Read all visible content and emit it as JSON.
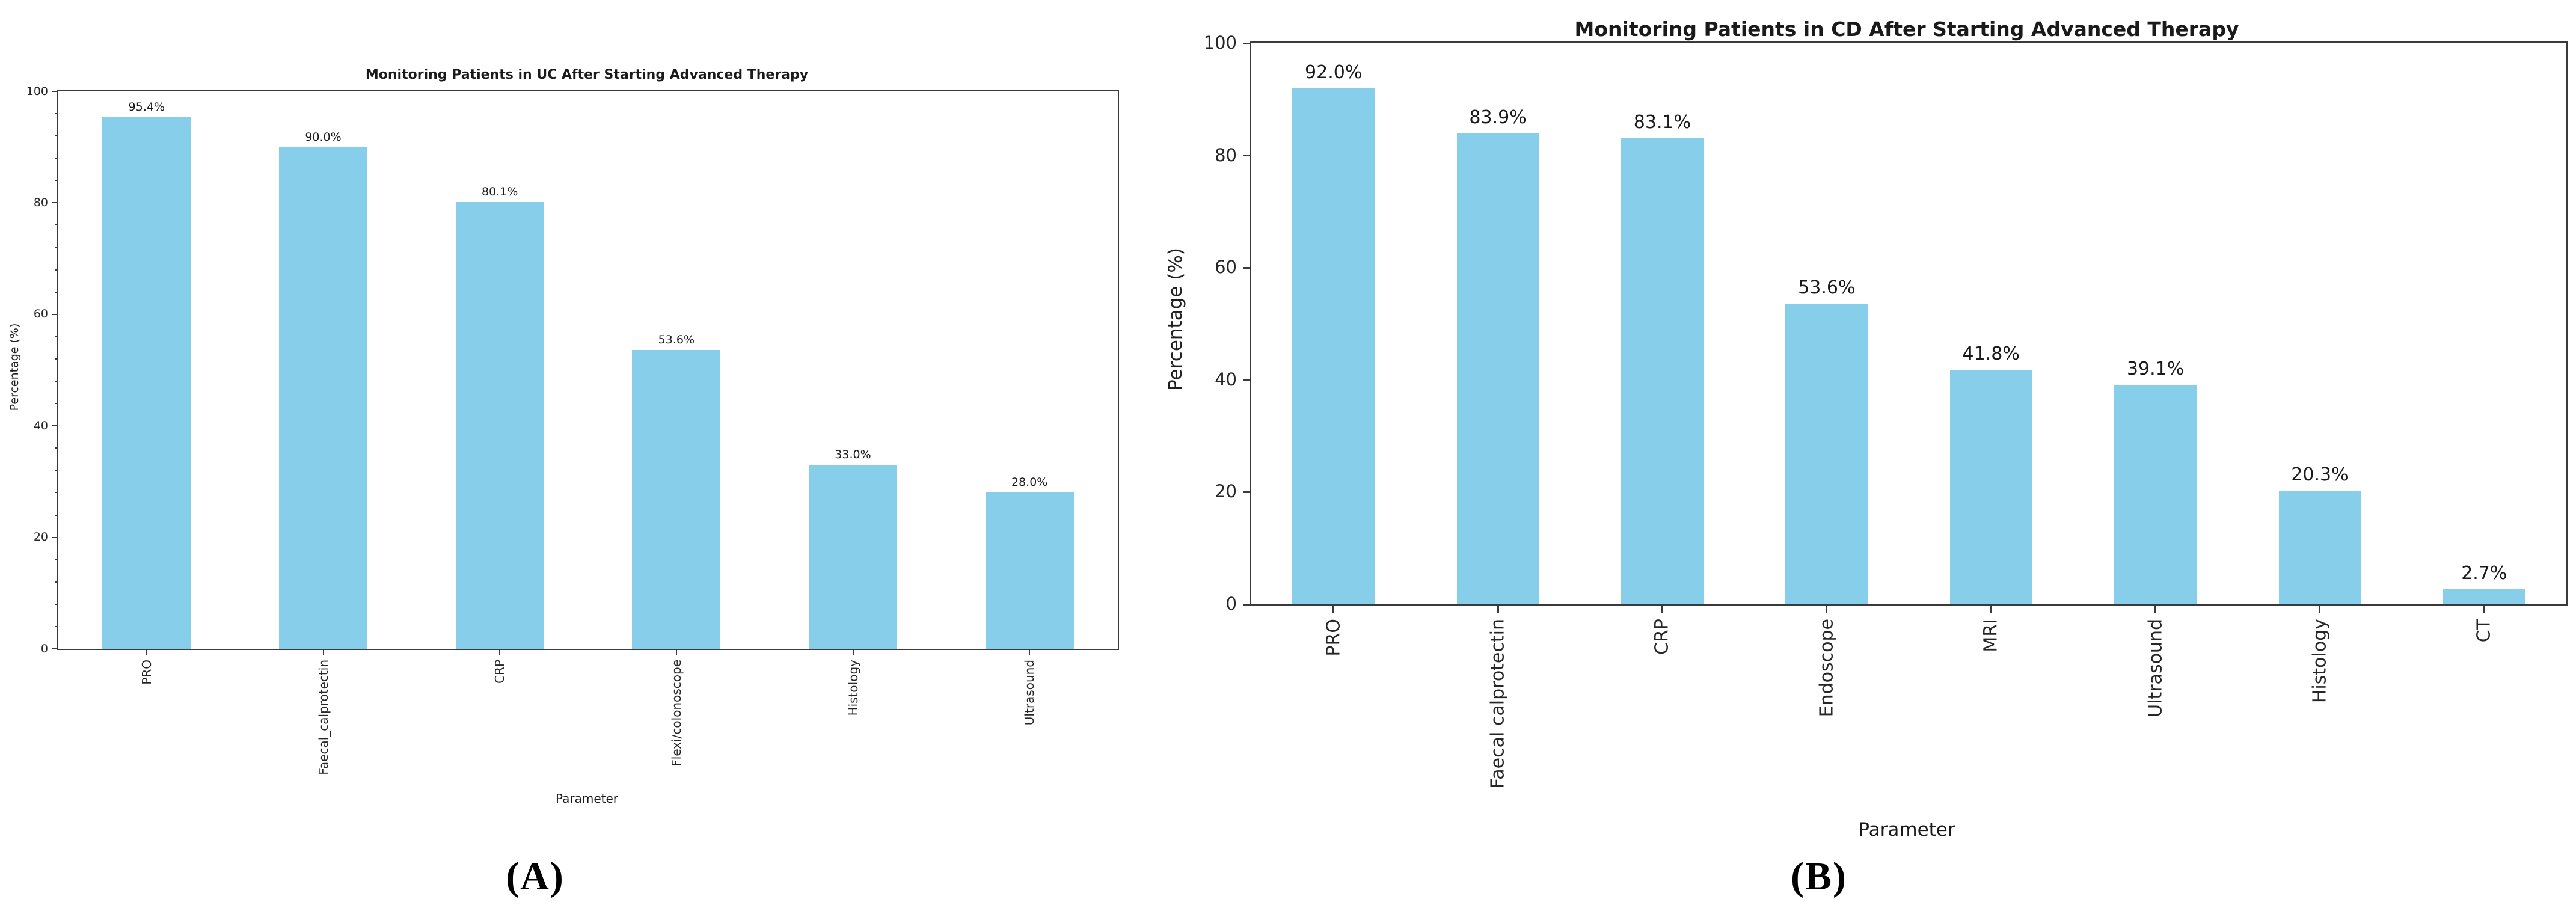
{
  "captions": [
    "(A)",
    "(B)"
  ],
  "colors": {
    "bar": "#87CEEB",
    "spine": "#3a3a3a",
    "text": "#1f1f1f"
  },
  "chart_data": [
    {
      "type": "bar",
      "title": "Monitoring Patients in UC After Starting Advanced Therapy",
      "xlabel": "Parameter",
      "ylabel": "Percentage (%)",
      "categories": [
        "PRO",
        "Faecal_calprotectin",
        "CRP",
        "Flexi/colonoscope",
        "Histology",
        "Ultrasound"
      ],
      "values": [
        95.4,
        90.0,
        80.1,
        53.6,
        33.0,
        28.0
      ],
      "value_labels": [
        "95.4%",
        "90.0%",
        "80.1%",
        "53.6%",
        "33.0%",
        "28.0%"
      ],
      "ylim": [
        0,
        100
      ],
      "yticks": [
        0,
        20,
        40,
        60,
        80,
        100
      ],
      "bar_color": "#87CEEB",
      "grid": false,
      "legend": null,
      "x_tick_rotation": 90,
      "minor_y_ticks": true
    },
    {
      "type": "bar",
      "title": "Monitoring Patients in CD After Starting Advanced Therapy",
      "xlabel": "Parameter",
      "ylabel": "Percentage (%)",
      "categories": [
        "PRO",
        "Faecal calprotectin",
        "CRP",
        "Endoscope",
        "MRI",
        "Ultrasound",
        "Histology",
        "CT"
      ],
      "values": [
        92.0,
        83.9,
        83.1,
        53.6,
        41.8,
        39.1,
        20.3,
        2.7
      ],
      "value_labels": [
        "92.0%",
        "83.9%",
        "83.1%",
        "53.6%",
        "41.8%",
        "39.1%",
        "20.3%",
        "2.7%"
      ],
      "ylim": [
        0,
        100
      ],
      "yticks": [
        0,
        20,
        40,
        60,
        80,
        100
      ],
      "bar_color": "#87CEEB",
      "grid": false,
      "legend": null,
      "x_tick_rotation": 90,
      "minor_y_ticks": false
    }
  ]
}
